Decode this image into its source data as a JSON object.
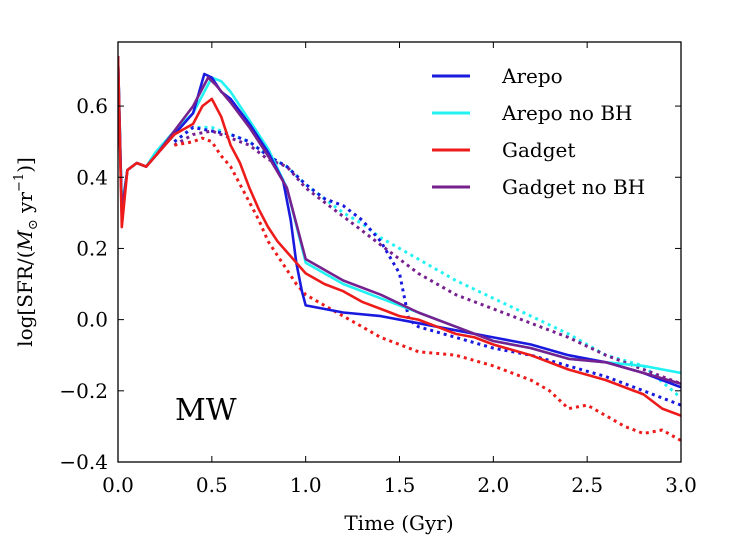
{
  "chart_data": {
    "type": "line",
    "title": "",
    "xlabel": "Time (Gyr)",
    "ylabel": "log[SFR/(M⊙ yr⁻¹)]",
    "ylabel_parts": {
      "pre": "log[SFR/(",
      "m": "M",
      "sun": "⊙",
      "mid": " yr",
      "exp": "−1",
      "post": ")]"
    },
    "xlim": [
      0.0,
      3.0
    ],
    "ylim": [
      -0.4,
      0.78
    ],
    "xticks": [
      "0.0",
      "0.5",
      "1.0",
      "1.5",
      "2.0",
      "2.5",
      "3.0"
    ],
    "xtick_values": [
      0.0,
      0.5,
      1.0,
      1.5,
      2.0,
      2.5,
      3.0
    ],
    "yticks": [
      "−0.4",
      "−0.2",
      "0.0",
      "0.2",
      "0.4",
      "0.6"
    ],
    "ytick_values": [
      -0.4,
      -0.2,
      0.0,
      0.2,
      0.4,
      0.6
    ],
    "annotation": "MW",
    "legend_position": "top-right",
    "legend": [
      "Arepo",
      "Arepo no BH",
      "Gadget",
      "Gadget no BH"
    ],
    "colors": {
      "Arepo": "#1a1adf",
      "Arepo no BH": "#22f2f2",
      "Gadget": "#ee1b1b",
      "Gadget no BH": "#77218f"
    },
    "series": [
      {
        "name": "Arepo no BH",
        "style": "solid",
        "x": [
          0,
          0.02,
          0.05,
          0.1,
          0.15,
          0.2,
          0.3,
          0.4,
          0.45,
          0.5,
          0.55,
          0.6,
          0.7,
          0.8,
          0.9,
          1.0,
          1.2,
          1.4,
          1.6,
          1.8,
          2.0,
          2.2,
          2.4,
          2.6,
          2.8,
          3.0
        ],
        "y": [
          0.74,
          0.32,
          0.42,
          0.44,
          0.43,
          0.47,
          0.53,
          0.58,
          0.63,
          0.68,
          0.67,
          0.64,
          0.56,
          0.48,
          0.37,
          0.16,
          0.1,
          0.06,
          0.02,
          -0.02,
          -0.06,
          -0.08,
          -0.11,
          -0.12,
          -0.13,
          -0.15
        ]
      },
      {
        "name": "Arepo",
        "style": "solid",
        "x": [
          0,
          0.02,
          0.05,
          0.1,
          0.15,
          0.2,
          0.3,
          0.4,
          0.46,
          0.5,
          0.55,
          0.6,
          0.7,
          0.8,
          0.88,
          0.92,
          0.95,
          0.98,
          1.0,
          1.2,
          1.4,
          1.6,
          1.8,
          2.0,
          2.2,
          2.4,
          2.6,
          2.8,
          3.0
        ],
        "y": [
          0.74,
          0.3,
          0.42,
          0.44,
          0.43,
          0.46,
          0.52,
          0.58,
          0.69,
          0.68,
          0.64,
          0.62,
          0.55,
          0.47,
          0.39,
          0.28,
          0.16,
          0.08,
          0.04,
          0.02,
          0.01,
          -0.01,
          -0.03,
          -0.05,
          -0.07,
          -0.1,
          -0.12,
          -0.15,
          -0.19
        ]
      },
      {
        "name": "Gadget no BH",
        "style": "solid",
        "x": [
          0,
          0.02,
          0.05,
          0.1,
          0.15,
          0.2,
          0.3,
          0.4,
          0.48,
          0.52,
          0.6,
          0.7,
          0.8,
          0.9,
          1.0,
          1.2,
          1.4,
          1.6,
          1.8,
          2.0,
          2.2,
          2.4,
          2.6,
          2.8,
          3.0
        ],
        "y": [
          0.74,
          0.3,
          0.42,
          0.44,
          0.43,
          0.46,
          0.53,
          0.6,
          0.68,
          0.66,
          0.61,
          0.54,
          0.46,
          0.37,
          0.17,
          0.11,
          0.07,
          0.02,
          -0.02,
          -0.06,
          -0.08,
          -0.11,
          -0.12,
          -0.15,
          -0.18
        ]
      },
      {
        "name": "Gadget",
        "style": "solid",
        "x": [
          0,
          0.02,
          0.05,
          0.1,
          0.15,
          0.2,
          0.3,
          0.4,
          0.45,
          0.5,
          0.55,
          0.6,
          0.65,
          0.7,
          0.75,
          0.8,
          0.85,
          0.9,
          0.95,
          1.0,
          1.1,
          1.2,
          1.3,
          1.4,
          1.5,
          1.6,
          1.7,
          1.8,
          1.9,
          2.0,
          2.2,
          2.4,
          2.6,
          2.8,
          2.9,
          3.0
        ],
        "y": [
          0.74,
          0.26,
          0.42,
          0.44,
          0.43,
          0.46,
          0.52,
          0.55,
          0.6,
          0.62,
          0.57,
          0.49,
          0.44,
          0.37,
          0.31,
          0.26,
          0.22,
          0.19,
          0.16,
          0.13,
          0.1,
          0.08,
          0.05,
          0.03,
          0.01,
          0.0,
          -0.02,
          -0.04,
          -0.05,
          -0.07,
          -0.1,
          -0.14,
          -0.17,
          -0.21,
          -0.25,
          -0.27
        ]
      },
      {
        "name": "Arepo no BH",
        "style": "dotted",
        "x": [
          0.3,
          0.4,
          0.5,
          0.6,
          0.7,
          0.8,
          0.9,
          1.0,
          1.1,
          1.2,
          1.3,
          1.4,
          1.5,
          1.6,
          1.8,
          2.0,
          2.2,
          2.4,
          2.6,
          2.8,
          3.0
        ],
        "y": [
          0.5,
          0.54,
          0.54,
          0.52,
          0.5,
          0.46,
          0.43,
          0.38,
          0.34,
          0.3,
          0.27,
          0.23,
          0.2,
          0.17,
          0.11,
          0.06,
          0.01,
          -0.04,
          -0.1,
          -0.13,
          -0.22
        ]
      },
      {
        "name": "Arepo",
        "style": "dotted",
        "x": [
          0.3,
          0.4,
          0.5,
          0.6,
          0.7,
          0.8,
          0.9,
          1.0,
          1.1,
          1.2,
          1.3,
          1.4,
          1.5,
          1.55,
          1.6,
          1.8,
          2.0,
          2.2,
          2.4,
          2.6,
          2.8,
          3.0
        ],
        "y": [
          0.5,
          0.54,
          0.53,
          0.52,
          0.5,
          0.46,
          0.43,
          0.38,
          0.34,
          0.32,
          0.28,
          0.22,
          0.13,
          0.0,
          -0.02,
          -0.05,
          -0.08,
          -0.1,
          -0.13,
          -0.16,
          -0.2,
          -0.24
        ]
      },
      {
        "name": "Gadget no BH",
        "style": "dotted",
        "x": [
          0.3,
          0.4,
          0.5,
          0.6,
          0.7,
          0.8,
          0.9,
          1.0,
          1.1,
          1.2,
          1.3,
          1.4,
          1.5,
          1.6,
          1.8,
          2.0,
          2.2,
          2.4,
          2.6,
          2.8,
          3.0
        ],
        "y": [
          0.49,
          0.52,
          0.53,
          0.51,
          0.49,
          0.45,
          0.43,
          0.37,
          0.33,
          0.29,
          0.25,
          0.21,
          0.17,
          0.13,
          0.07,
          0.03,
          -0.01,
          -0.05,
          -0.1,
          -0.14,
          -0.18
        ]
      },
      {
        "name": "Gadget",
        "style": "dotted",
        "x": [
          0.3,
          0.4,
          0.45,
          0.5,
          0.55,
          0.6,
          0.65,
          0.7,
          0.75,
          0.8,
          0.85,
          0.9,
          0.95,
          1.0,
          1.1,
          1.2,
          1.3,
          1.4,
          1.5,
          1.6,
          1.8,
          2.0,
          2.2,
          2.3,
          2.4,
          2.5,
          2.6,
          2.7,
          2.8,
          2.9,
          3.0
        ],
        "y": [
          0.49,
          0.5,
          0.51,
          0.5,
          0.46,
          0.43,
          0.38,
          0.33,
          0.28,
          0.22,
          0.18,
          0.14,
          0.1,
          0.07,
          0.04,
          0.01,
          -0.02,
          -0.05,
          -0.07,
          -0.09,
          -0.1,
          -0.13,
          -0.17,
          -0.2,
          -0.25,
          -0.24,
          -0.27,
          -0.3,
          -0.32,
          -0.31,
          -0.34
        ]
      }
    ]
  }
}
